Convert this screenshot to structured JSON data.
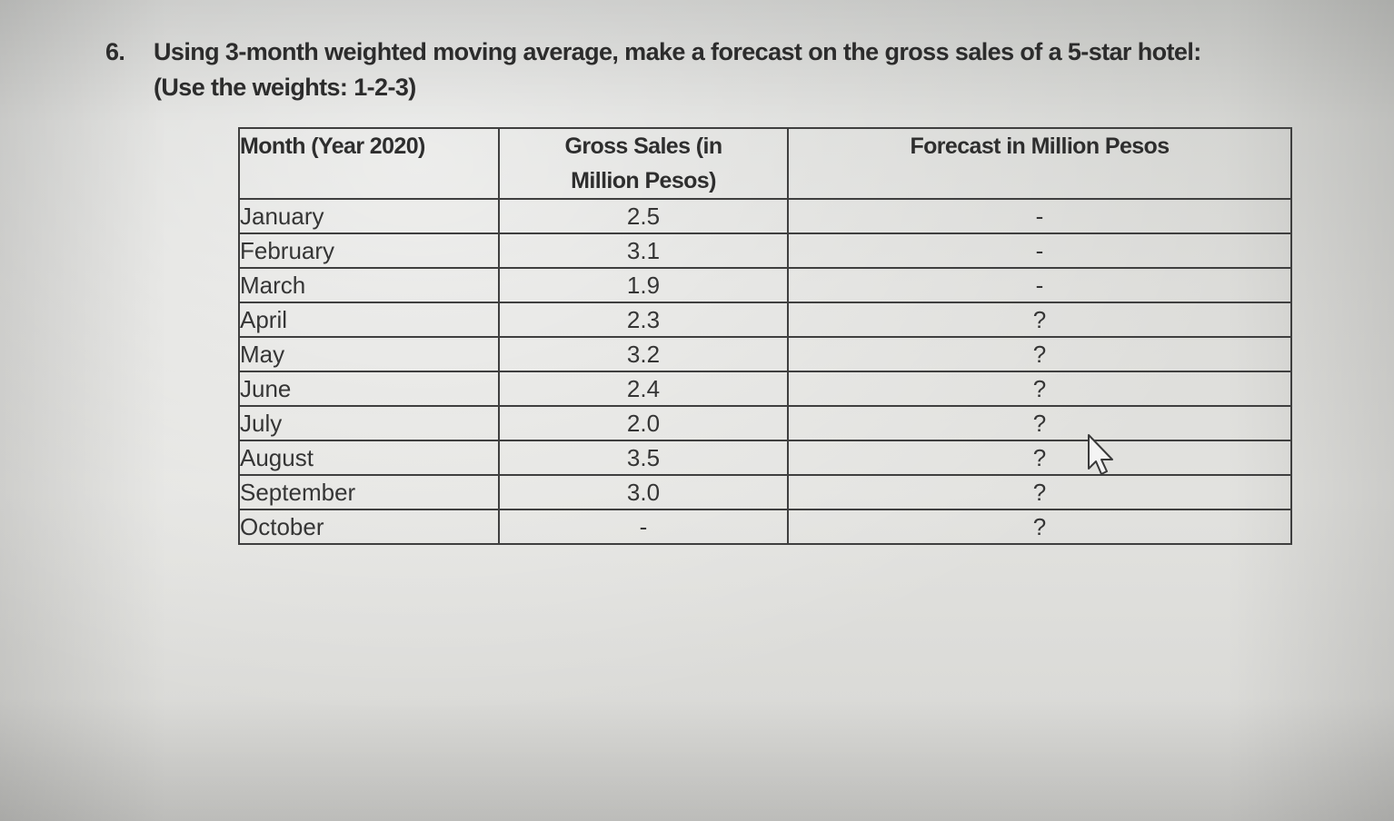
{
  "question": {
    "number": "6.",
    "text": "Using 3-month weighted moving average, make a forecast on the gross sales of a 5-star hotel:",
    "subtext": "(Use the weights: 1-2-3)"
  },
  "table": {
    "headers": {
      "month": "Month (Year 2020)",
      "sales_line1": "Gross Sales (in",
      "sales_line2": "Million Pesos)",
      "forecast": "Forecast in Million Pesos"
    },
    "rows": [
      {
        "month": "January",
        "sales": "2.5",
        "forecast": "-"
      },
      {
        "month": "February",
        "sales": "3.1",
        "forecast": "-"
      },
      {
        "month": "March",
        "sales": "1.9",
        "forecast": "-"
      },
      {
        "month": "April",
        "sales": "2.3",
        "forecast": "?"
      },
      {
        "month": "May",
        "sales": "3.2",
        "forecast": "?"
      },
      {
        "month": "June",
        "sales": "2.4",
        "forecast": "?"
      },
      {
        "month": "July",
        "sales": "2.0",
        "forecast": "?"
      },
      {
        "month": "August",
        "sales": "3.5",
        "forecast": "?"
      },
      {
        "month": "September",
        "sales": "3.0",
        "forecast": "?"
      },
      {
        "month": "October",
        "sales": "-",
        "forecast": "?"
      }
    ]
  },
  "cursor": {
    "icon": "mouse-pointer-icon"
  }
}
